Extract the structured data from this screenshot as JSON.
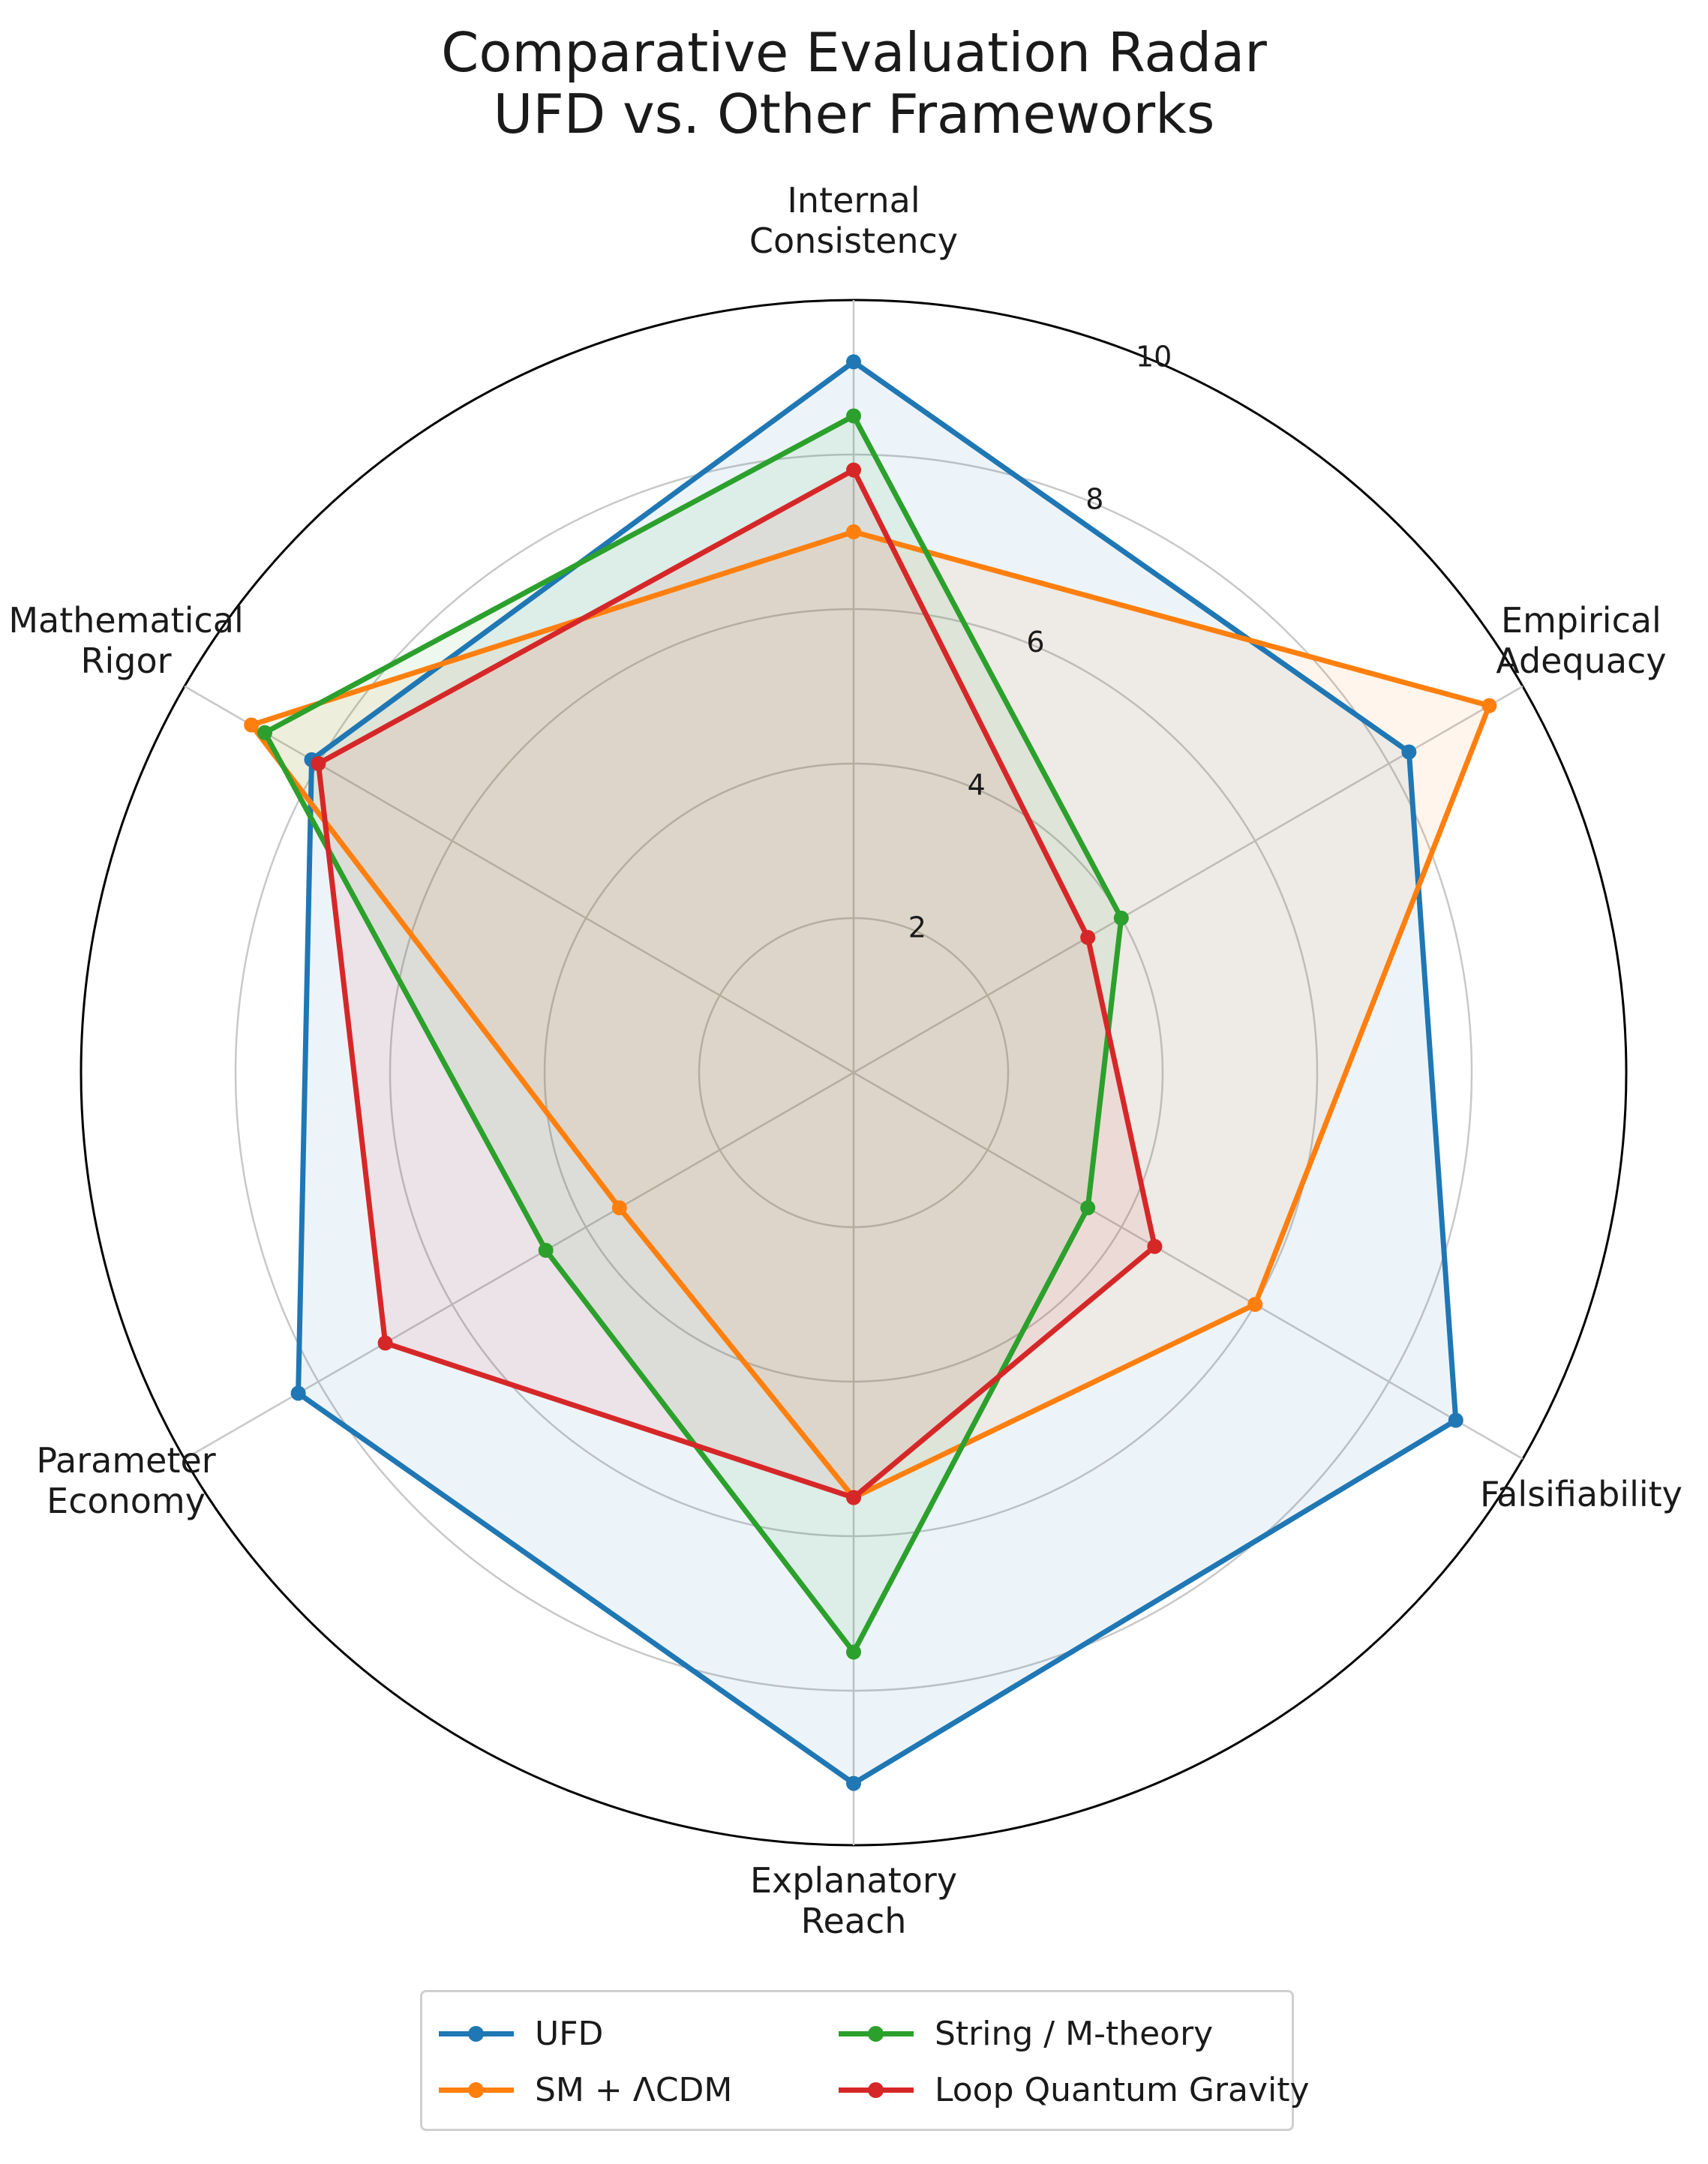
{
  "title": {
    "line1": "Comparative Evaluation Radar",
    "line2": "UFD vs. Other Frameworks"
  },
  "chart_data": {
    "type": "radar",
    "axes": [
      {
        "line1": "Internal",
        "line2": "Consistency"
      },
      {
        "line1": "Empirical",
        "line2": "Adequacy"
      },
      {
        "line1": "Falsifiability",
        "line2": ""
      },
      {
        "line1": "Explanatory",
        "line2": "Reach"
      },
      {
        "line1": "Parameter",
        "line2": "Economy"
      },
      {
        "line1": "Mathematical",
        "line2": "Rigor"
      }
    ],
    "rlim": [
      0,
      10
    ],
    "rticks": [
      "2",
      "4",
      "6",
      "8",
      "10"
    ],
    "rtick_values": [
      2,
      4,
      6,
      8,
      10
    ],
    "grid": true,
    "legend_position": "bottom",
    "series": [
      {
        "name": "UFD",
        "color": "#1f77b4",
        "values": [
          9.2,
          8.3,
          9.0,
          9.2,
          8.3,
          8.1
        ]
      },
      {
        "name": "SM + ΛCDM",
        "color": "#ff7f0e",
        "values": [
          7.0,
          9.5,
          6.0,
          5.5,
          3.5,
          9.0
        ]
      },
      {
        "name": "String / M-theory",
        "color": "#2ca02c",
        "values": [
          8.5,
          4.0,
          3.5,
          7.5,
          4.6,
          8.8
        ]
      },
      {
        "name": "Loop Quantum Gravity",
        "color": "#d62728",
        "values": [
          7.8,
          3.5,
          4.5,
          5.5,
          7.0,
          8.0
        ]
      }
    ]
  }
}
